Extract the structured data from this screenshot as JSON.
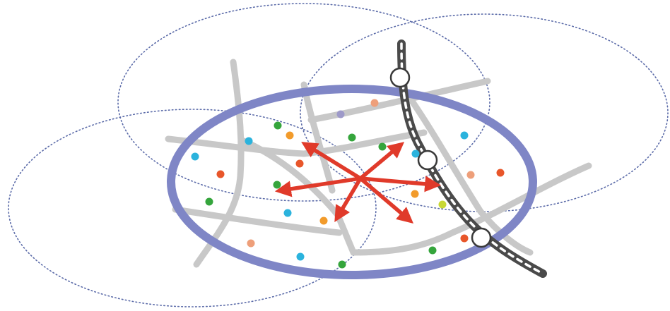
{
  "diagram": {
    "kind": "urban-accessibility-illustration",
    "colors": {
      "background": "#ffffff",
      "dotted_boundary": "#5a6aa8",
      "main_zone": "#7f86c6",
      "roads": "#c8c8c8",
      "railway_dark": "#4a4a4a",
      "railway_dash": "#ffffff",
      "stations_fill": "#ffffff",
      "stations_stroke": "#3a3a3a",
      "arrows": "#e03a2a"
    },
    "poi_palette": [
      "#2bb3dd",
      "#e8562a",
      "#f29b2b",
      "#35a53c",
      "#9e9ac9",
      "#ee9f7a",
      "#c8d835"
    ],
    "elements": [
      "dotted-catchment-circles",
      "highlighted-catchment-ellipse",
      "street-network",
      "railway-line",
      "railway-stations",
      "points-of-interest",
      "accessibility-arrows"
    ]
  }
}
